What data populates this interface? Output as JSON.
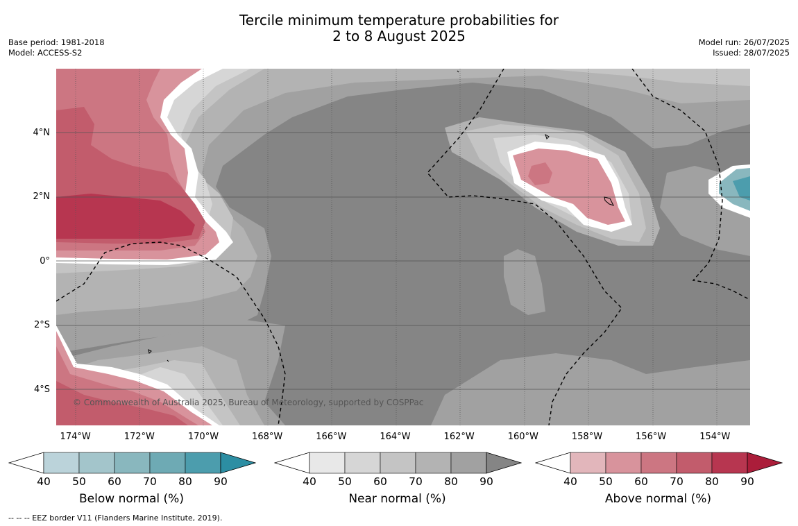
{
  "header": {
    "title_line1": "Tercile minimum temperature probabilities for",
    "title_line2": "2 to 8 August 2025",
    "base_period": "Base period: 1981-2018",
    "model": "Model: ACCESS-S2",
    "model_run": "Model run: 26/07/2025",
    "issued": "Issued: 28/07/2025"
  },
  "map": {
    "lon_range": [
      -174.6,
      -152.9
    ],
    "lat_range": [
      -5.1,
      6.0
    ],
    "lat_ticks": [
      {
        "value": 4,
        "label": "4°N"
      },
      {
        "value": 2,
        "label": "2°N"
      },
      {
        "value": 0,
        "label": "0°"
      },
      {
        "value": -2,
        "label": "2°S"
      },
      {
        "value": -4,
        "label": "4°S"
      }
    ],
    "lon_ticks": [
      {
        "value": -174,
        "label": "174°W"
      },
      {
        "value": -172,
        "label": "172°W"
      },
      {
        "value": -170,
        "label": "170°W"
      },
      {
        "value": -168,
        "label": "168°W"
      },
      {
        "value": -166,
        "label": "166°W"
      },
      {
        "value": -164,
        "label": "164°W"
      },
      {
        "value": -162,
        "label": "162°W"
      },
      {
        "value": -160,
        "label": "160°W"
      },
      {
        "value": -158,
        "label": "158°W"
      },
      {
        "value": -156,
        "label": "156°W"
      },
      {
        "value": -154,
        "label": "154°W"
      }
    ],
    "copyright": "© Commonwealth of Australia 2025, Bureau of Meteorology, supported by COSPPac"
  },
  "colorbars": [
    {
      "title": "Below normal (%)",
      "levels": [
        "40",
        "50",
        "60",
        "70",
        "80",
        "90"
      ],
      "colors": [
        "#bbd3da",
        "#a3c5cb",
        "#89b7be",
        "#6eaab4",
        "#4c9dad"
      ],
      "extend_color": "#2c8ea3"
    },
    {
      "title": "Near normal (%)",
      "levels": [
        "40",
        "50",
        "60",
        "70",
        "80",
        "90"
      ],
      "colors": [
        "#e8e8e8",
        "#d6d6d6",
        "#c4c4c4",
        "#b3b3b3",
        "#a1a1a1"
      ],
      "extend_color": "#858585"
    },
    {
      "title": "Above normal (%)",
      "levels": [
        "40",
        "50",
        "60",
        "70",
        "80",
        "90"
      ],
      "colors": [
        "#e2b6bb",
        "#d8939c",
        "#cc7682",
        "#c25c6c",
        "#b73650"
      ],
      "extend_color": "#ab1d3a"
    }
  ],
  "footnote": "--  --  -- EEZ border V11 (Flanders Marine Institute, 2019)."
}
